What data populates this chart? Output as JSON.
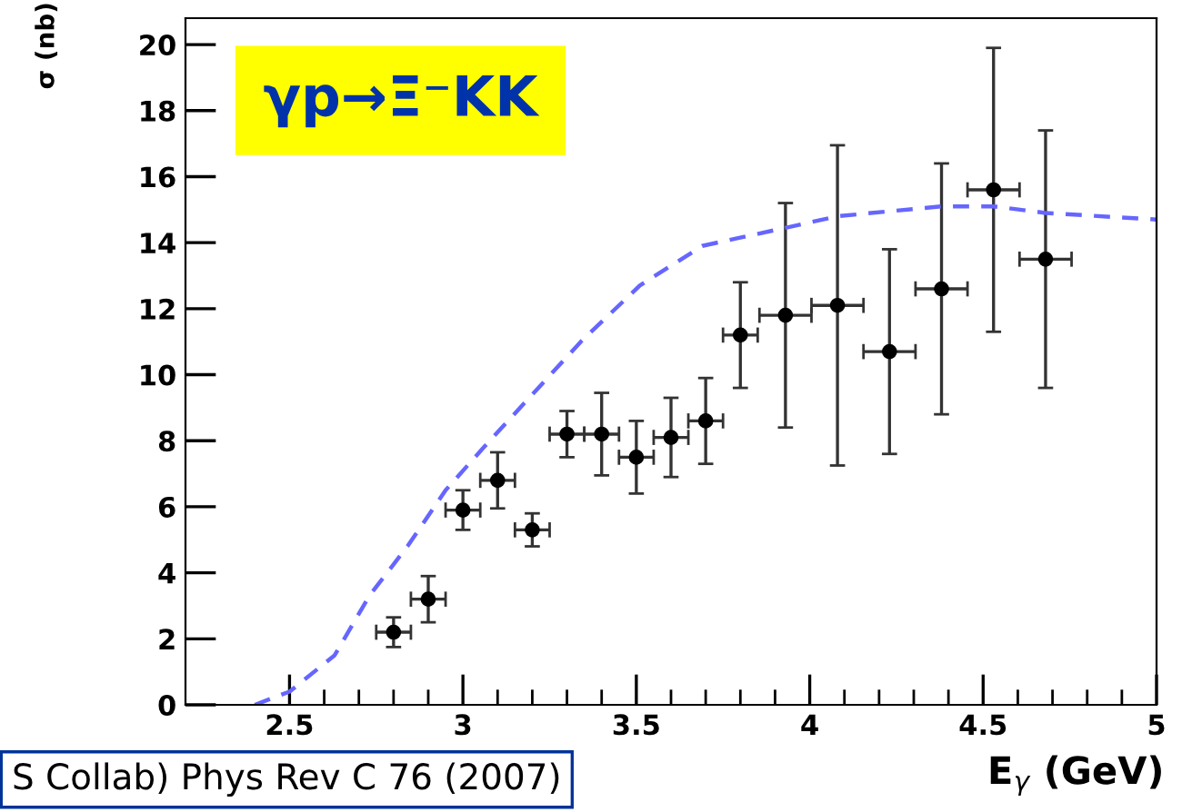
{
  "chart_data": {
    "type": "scatter",
    "title": "γp→Ξ⁻KK",
    "xlabel": "E$_{γ}$ (GeV)",
    "ylabel": "σ (nb)",
    "annotations": [
      "S Collab) Phys Rev C 76 (2007)"
    ],
    "xlim": [
      2.2,
      5.0
    ],
    "ylim": [
      0,
      20.8
    ],
    "xticks": [
      2.5,
      {
        "value": 2.6,
        "label": null
      },
      {
        "value": 2.7,
        "label": null
      },
      {
        "value": 2.8,
        "label": null
      },
      {
        "value": 2.9,
        "label": null
      },
      3,
      {
        "value": 3.1,
        "label": null
      },
      {
        "value": 3.2,
        "label": null
      },
      {
        "value": 3.3,
        "label": null
      },
      {
        "value": 3.4,
        "label": null
      },
      3.5,
      {
        "value": 3.6,
        "label": null
      },
      {
        "value": 3.7,
        "label": null
      },
      {
        "value": 3.8,
        "label": null
      },
      {
        "value": 3.9,
        "label": null
      },
      4,
      {
        "value": 4.1,
        "label": null
      },
      {
        "value": 4.2,
        "label": null
      },
      {
        "value": 4.3,
        "label": null
      },
      {
        "value": 4.4,
        "label": null
      },
      4.5,
      {
        "value": 4.6,
        "label": null
      },
      {
        "value": 4.7,
        "label": null
      },
      {
        "value": 4.8,
        "label": null
      },
      {
        "value": 4.9,
        "label": null
      },
      5
    ],
    "yticks": [
      0,
      2,
      4,
      6,
      8,
      10,
      12,
      14,
      16,
      18,
      20
    ],
    "grid": false,
    "legend": false,
    "series": [
      {
        "color": "#000000",
        "marker": "circle",
        "x": [
          2.8,
          2.9,
          3.0,
          3.1,
          3.2,
          3.3,
          3.4,
          3.5,
          3.6,
          3.7,
          3.8,
          3.93,
          4.08,
          4.23,
          4.38,
          4.53,
          4.68
        ],
        "values": [
          2.2,
          3.2,
          5.9,
          6.8,
          5.3,
          8.2,
          8.2,
          7.5,
          8.1,
          8.6,
          11.2,
          11.8,
          12.1,
          10.7,
          12.6,
          15.6,
          13.5
        ],
        "errors": [
          0.45,
          0.7,
          0.6,
          0.85,
          0.5,
          0.7,
          1.25,
          1.1,
          1.2,
          1.3,
          1.6,
          3.4,
          4.85,
          3.1,
          3.8,
          4.3,
          3.9
        ],
        "xerrors": [
          0.05,
          0.05,
          0.05,
          0.05,
          0.05,
          0.05,
          0.05,
          0.05,
          0.05,
          0.05,
          0.05,
          0.075,
          0.075,
          0.075,
          0.075,
          0.075,
          0.075
        ]
      },
      {
        "type": "line",
        "color": "#6666ff",
        "line_style": "dashed",
        "marker": "none",
        "x": [
          2.4,
          2.5,
          2.63,
          2.73,
          2.84,
          2.95,
          3.06,
          3.2,
          3.34,
          3.51,
          3.69,
          3.93,
          4.08,
          4.38,
          4.53,
          4.68,
          5.0
        ],
        "values": [
          0,
          0.4,
          1.5,
          3.3,
          4.8,
          6.5,
          7.8,
          9.4,
          11.0,
          12.7,
          13.9,
          14.45,
          14.8,
          15.1,
          15.1,
          14.9,
          14.7
        ]
      }
    ]
  }
}
